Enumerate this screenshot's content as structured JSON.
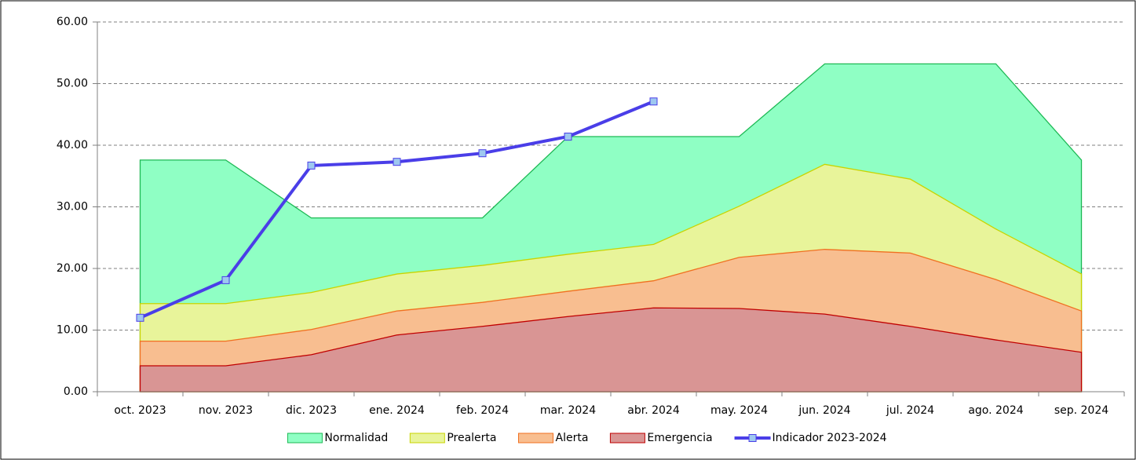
{
  "chart_data": {
    "type": "area",
    "categories": [
      "oct. 2023",
      "nov. 2023",
      "dic. 2023",
      "ene. 2024",
      "feb. 2024",
      "mar. 2024",
      "abr. 2024",
      "may. 2024",
      "jun. 2024",
      "jul. 2024",
      "ago. 2024",
      "sep. 2024"
    ],
    "series": [
      {
        "name": "Normalidad",
        "color": "#8fffc4",
        "stroke": "#1db954",
        "values": [
          37.6,
          37.6,
          28.2,
          28.2,
          28.2,
          41.4,
          41.4,
          41.4,
          53.2,
          53.2,
          53.2,
          37.6
        ]
      },
      {
        "name": "Prealerta",
        "color": "#e8f49a",
        "stroke": "#c8d400",
        "values": [
          14.3,
          14.3,
          16.1,
          19.1,
          20.5,
          22.3,
          23.9,
          30.1,
          36.9,
          34.5,
          26.4,
          19.1
        ]
      },
      {
        "name": "Alerta",
        "color": "#f8be90",
        "stroke": "#f07020",
        "values": [
          8.2,
          8.2,
          10.1,
          13.1,
          14.5,
          16.3,
          18.0,
          21.8,
          23.1,
          22.5,
          18.2,
          13.1
        ]
      },
      {
        "name": "Emergencia",
        "color": "#d99594",
        "stroke": "#c00000",
        "values": [
          4.2,
          4.2,
          6.0,
          9.2,
          10.6,
          12.2,
          13.6,
          13.5,
          12.6,
          10.6,
          8.4,
          6.4
        ]
      },
      {
        "name": "Indicador 2023-2024",
        "type": "line",
        "color": "#4a3ee8",
        "marker": "#9ec8f0",
        "values": [
          12.0,
          18.1,
          36.7,
          37.3,
          38.7,
          41.4,
          47.1,
          null,
          null,
          null,
          null,
          null
        ]
      }
    ],
    "ylim": [
      0,
      60
    ],
    "yticks": [
      {
        "value": 0,
        "label": "0.00"
      },
      {
        "value": 10,
        "label": "10.00"
      },
      {
        "value": 20,
        "label": "20.00"
      },
      {
        "value": 30,
        "label": "30.00"
      },
      {
        "value": 40,
        "label": "40.00"
      },
      {
        "value": 50,
        "label": "50.00"
      },
      {
        "value": 60,
        "label": "60.00"
      }
    ],
    "grid": true,
    "legend": "bottom"
  }
}
